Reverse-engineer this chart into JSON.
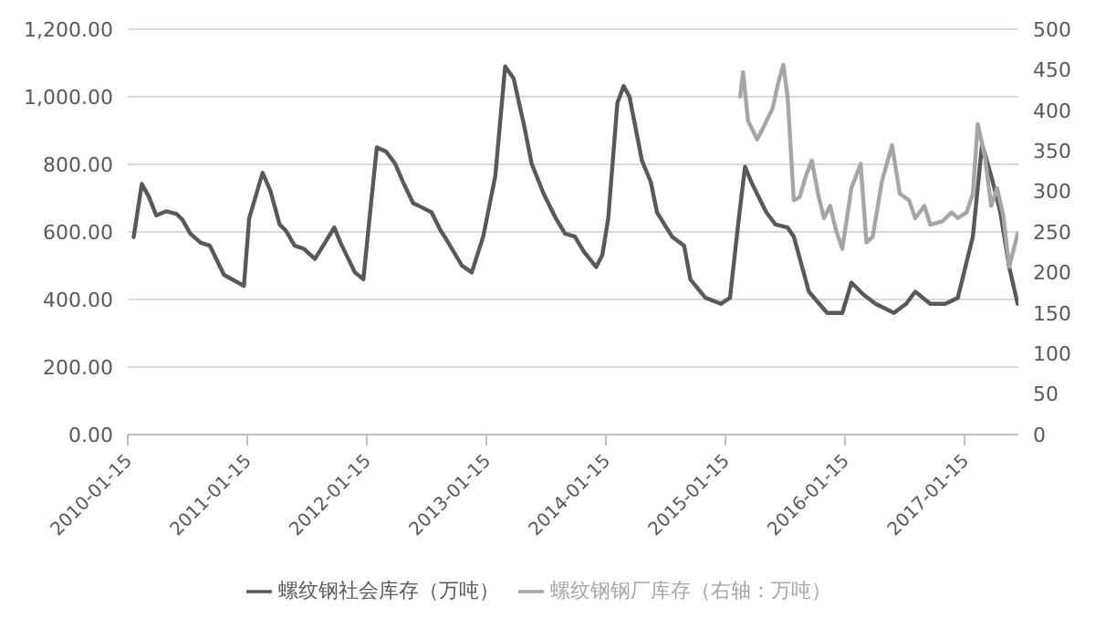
{
  "chart_data": {
    "type": "line",
    "xlim": [
      "2010-01-15",
      "2017-06-28"
    ],
    "xticks": [
      "2010-01-15",
      "2011-01-15",
      "2012-01-15",
      "2013-01-15",
      "2014-01-15",
      "2015-01-15",
      "2016-01-15",
      "2017-01-15"
    ],
    "ylim": [
      0,
      1200
    ],
    "yticks": [
      {
        "value": 0,
        "label": "0.00"
      },
      {
        "value": 200,
        "label": "200.00"
      },
      {
        "value": 400,
        "label": "400.00"
      },
      {
        "value": 600,
        "label": "600.00"
      },
      {
        "value": 800,
        "label": "800.00"
      },
      {
        "value": 1000,
        "label": "1,000.00"
      },
      {
        "value": 1200,
        "label": "1,200.00"
      }
    ],
    "y2lim": [
      0,
      500
    ],
    "y2ticks": [
      0,
      50,
      100,
      150,
      200,
      250,
      300,
      350,
      400,
      450,
      500
    ],
    "grid": "y",
    "legend": "bottom",
    "marker": "none",
    "line_style": "solid",
    "series": [
      {
        "name": "螺纹钢社会库存（万吨）",
        "color": "#595959",
        "x": [
          "2010-02-02",
          "2010-02-27",
          "2010-03-21",
          "2010-04-12",
          "2010-05-12",
          "2010-06-12",
          "2010-07-01",
          "2010-07-25",
          "2010-08-26",
          "2010-09-23",
          "2010-11-05",
          "2011-01-05",
          "2011-01-21",
          "2011-03-03",
          "2011-03-27",
          "2011-04-24",
          "2011-05-13",
          "2011-06-09",
          "2011-07-07",
          "2011-08-10",
          "2011-10-08",
          "2011-10-27",
          "2011-12-10",
          "2012-01-05",
          "2012-01-18",
          "2012-02-15",
          "2012-03-14",
          "2012-04-11",
          "2012-05-09",
          "2012-06-05",
          "2012-07-03",
          "2012-07-31",
          "2012-08-28",
          "2012-09-15",
          "2012-11-01",
          "2012-12-01",
          "2013-01-05",
          "2013-02-11",
          "2013-03-13",
          "2013-04-08",
          "2013-05-11",
          "2013-06-02",
          "2013-07-09",
          "2013-08-15",
          "2013-09-12",
          "2013-10-12",
          "2013-11-09",
          "2013-12-16",
          "2014-01-04",
          "2014-01-22",
          "2014-02-19",
          "2014-03-10",
          "2014-03-28",
          "2014-05-05",
          "2014-06-01",
          "2014-06-20",
          "2014-08-05",
          "2014-09-11",
          "2014-09-30",
          "2014-11-15",
          "2015-01-01",
          "2015-01-29",
          "2015-02-25",
          "2015-03-16",
          "2015-04-04",
          "2015-04-22",
          "2015-05-20",
          "2015-06-17",
          "2015-07-24",
          "2015-08-12",
          "2015-09-27",
          "2015-11-22",
          "2016-01-07",
          "2016-02-04",
          "2016-03-12",
          "2016-04-18",
          "2016-06-13",
          "2016-07-20",
          "2016-08-17",
          "2016-10-02",
          "2016-11-17",
          "2016-12-25",
          "2017-02-09",
          "2017-03-09",
          "2017-04-06",
          "2017-05-04",
          "2017-05-31",
          "2017-06-26"
        ],
        "values": [
          585,
          742,
          703,
          649,
          661,
          654,
          636,
          595,
          568,
          559,
          473,
          440,
          640,
          775,
          721,
          622,
          604,
          559,
          550,
          520,
          613,
          568,
          480,
          460,
          586,
          850,
          838,
          802,
          739,
          685,
          672,
          658,
          604,
          577,
          500,
          480,
          586,
          766,
          1090,
          1054,
          910,
          802,
          712,
          640,
          595,
          586,
          541,
          496,
          532,
          640,
          982,
          1032,
          1000,
          811,
          748,
          658,
          586,
          559,
          459,
          405,
          387,
          405,
          640,
          793,
          748,
          712,
          658,
          622,
          613,
          586,
          423,
          360,
          360,
          450,
          414,
          387,
          360,
          387,
          423,
          387,
          387,
          405,
          586,
          859,
          766,
          658,
          496,
          387
        ]
      },
      {
        "name": "螺纹钢钢厂库存（右轴：万吨）",
        "color": "#a6a6a6",
        "axis": "y2",
        "x": [
          "2015-03-01",
          "2015-03-10",
          "2015-03-25",
          "2015-04-22",
          "2015-05-11",
          "2015-06-08",
          "2015-06-26",
          "2015-07-11",
          "2015-07-24",
          "2015-08-12",
          "2015-08-30",
          "2015-09-18",
          "2015-10-06",
          "2015-10-25",
          "2015-11-12",
          "2015-12-01",
          "2015-12-19",
          "2016-01-07",
          "2016-02-04",
          "2016-03-03",
          "2016-03-21",
          "2016-04-09",
          "2016-05-07",
          "2016-06-07",
          "2016-07-01",
          "2016-07-29",
          "2016-08-17",
          "2016-09-14",
          "2016-10-02",
          "2016-11-08",
          "2016-12-06",
          "2016-12-25",
          "2017-01-21",
          "2017-02-09",
          "2017-02-24",
          "2017-03-18",
          "2017-04-06",
          "2017-04-24",
          "2017-05-13",
          "2017-05-31",
          "2017-06-26"
        ],
        "values": [
          417,
          447,
          387,
          364,
          379,
          402,
          435,
          456,
          417,
          289,
          293,
          319,
          338,
          297,
          267,
          282,
          252,
          229,
          304,
          334,
          237,
          244,
          312,
          357,
          297,
          289,
          267,
          282,
          259,
          263,
          274,
          267,
          274,
          297,
          383,
          342,
          282,
          304,
          270,
          207,
          248
        ]
      }
    ]
  }
}
